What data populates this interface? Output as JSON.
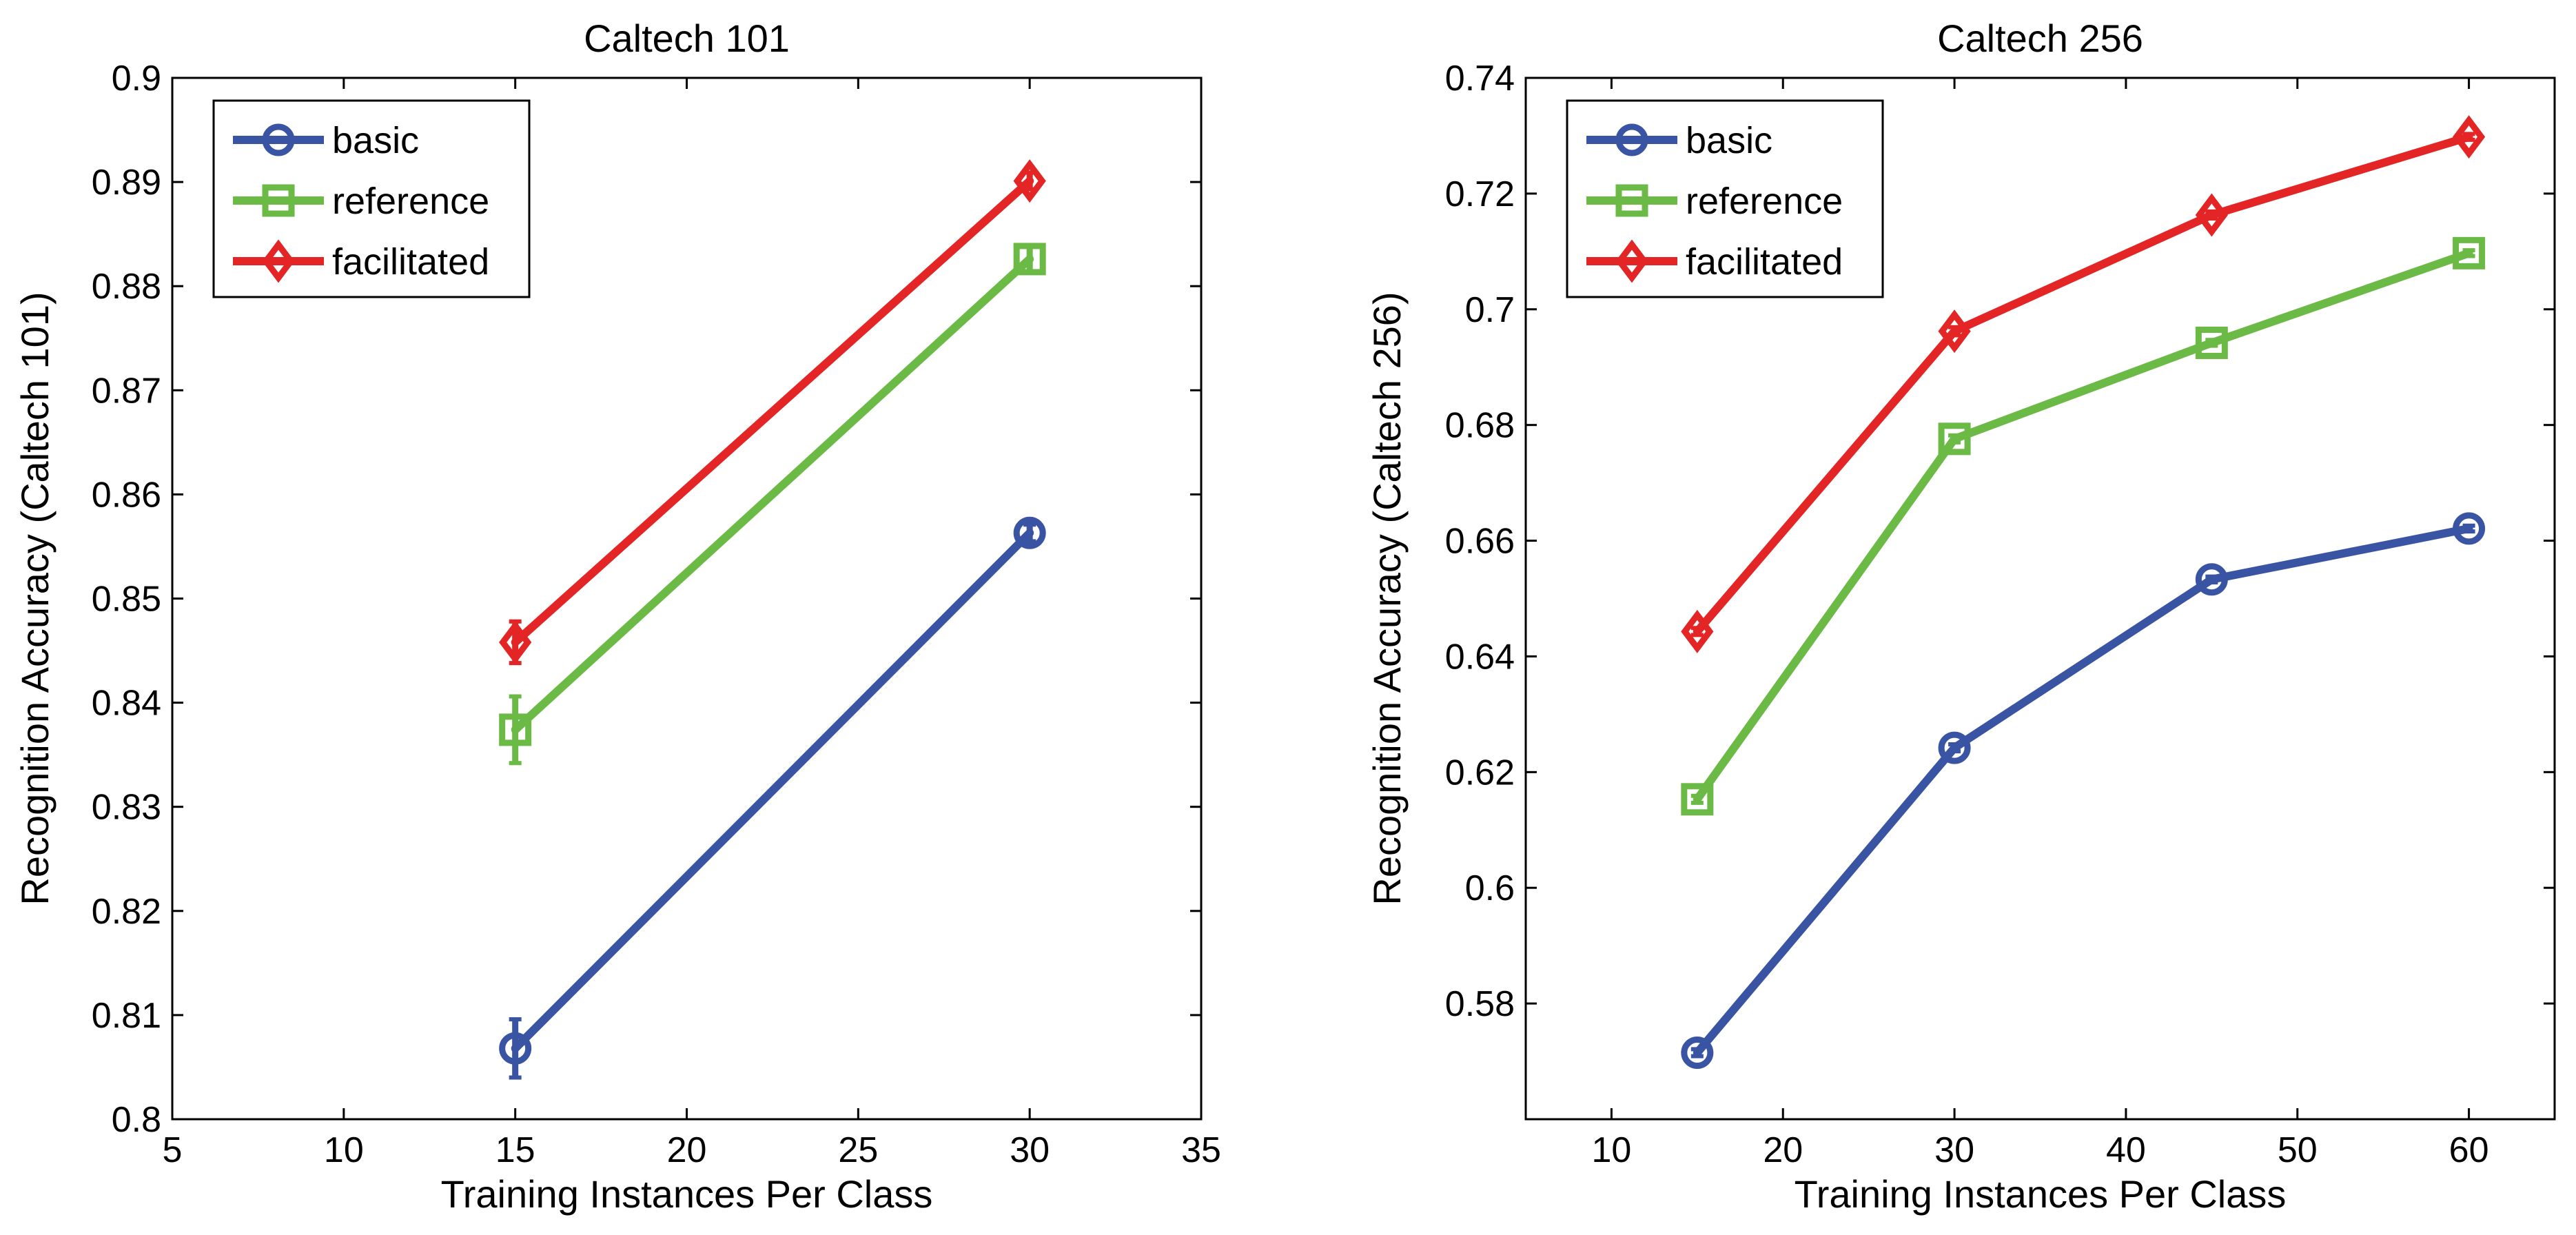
{
  "chart_data": [
    {
      "type": "line",
      "title": "Caltech 101",
      "xlabel": "Training Instances Per Class",
      "ylabel": "Recognition Accuracy (Caltech 101)",
      "xlim": [
        5,
        35
      ],
      "ylim": [
        0.8,
        0.9
      ],
      "xticks": [
        5,
        10,
        15,
        20,
        25,
        30,
        35
      ],
      "xtick_labels": [
        "5",
        "10",
        "15",
        "20",
        "25",
        "30",
        "35"
      ],
      "yticks": [
        0.8,
        0.81,
        0.82,
        0.83,
        0.84,
        0.85,
        0.86,
        0.87,
        0.88,
        0.89,
        0.9
      ],
      "ytick_labels": [
        "0.8",
        "0.81",
        "0.82",
        "0.83",
        "0.84",
        "0.85",
        "0.86",
        "0.87",
        "0.88",
        "0.89",
        "0.9"
      ],
      "grid": false,
      "legend_position": "top-left",
      "x": [
        15,
        30
      ],
      "series": [
        {
          "name": "basic",
          "marker": "circle",
          "color": "#3a54a4",
          "values": [
            0.8068,
            0.8563
          ],
          "errors": [
            0.0028,
            0.0008
          ]
        },
        {
          "name": "reference",
          "marker": "square",
          "color": "#6aba45",
          "values": [
            0.8374,
            0.8826
          ],
          "errors": [
            0.0032,
            0.0013
          ]
        },
        {
          "name": "facilitated",
          "marker": "diamond",
          "color": "#e42526",
          "values": [
            0.8458,
            0.8901
          ],
          "errors": [
            0.002,
            0.0008
          ]
        }
      ]
    },
    {
      "type": "line",
      "title": "Caltech 256",
      "xlabel": "Training Instances Per Class",
      "ylabel": "Recognition Accuracy (Caltech 256)",
      "xlim": [
        5,
        65
      ],
      "ylim": [
        0.56,
        0.74
      ],
      "xticks": [
        10,
        20,
        30,
        40,
        50,
        60
      ],
      "xtick_labels": [
        "10",
        "20",
        "30",
        "40",
        "50",
        "60"
      ],
      "yticks": [
        0.58,
        0.6,
        0.62,
        0.64,
        0.66,
        0.68,
        0.7,
        0.72,
        0.74
      ],
      "ytick_labels": [
        "0.58",
        "0.6",
        "0.62",
        "0.64",
        "0.66",
        "0.68",
        "0.7",
        "0.72",
        "0.74"
      ],
      "grid": false,
      "legend_position": "top-left",
      "x": [
        15,
        30,
        45,
        60
      ],
      "series": [
        {
          "name": "basic",
          "marker": "circle",
          "color": "#3a54a4",
          "values": [
            0.5715,
            0.6242,
            0.6533,
            0.6621
          ],
          "errors": [
            0.0006,
            0.0006,
            0.0005,
            0.0005
          ]
        },
        {
          "name": "reference",
          "marker": "square",
          "color": "#6aba45",
          "values": [
            0.6153,
            0.6776,
            0.6942,
            0.7097
          ],
          "errors": [
            0.0006,
            0.0006,
            0.0005,
            0.0005
          ]
        },
        {
          "name": "facilitated",
          "marker": "diamond",
          "color": "#e42526",
          "values": [
            0.6443,
            0.6962,
            0.7163,
            0.7298
          ],
          "errors": [
            0.0006,
            0.0007,
            0.0006,
            0.0005
          ]
        }
      ]
    }
  ]
}
